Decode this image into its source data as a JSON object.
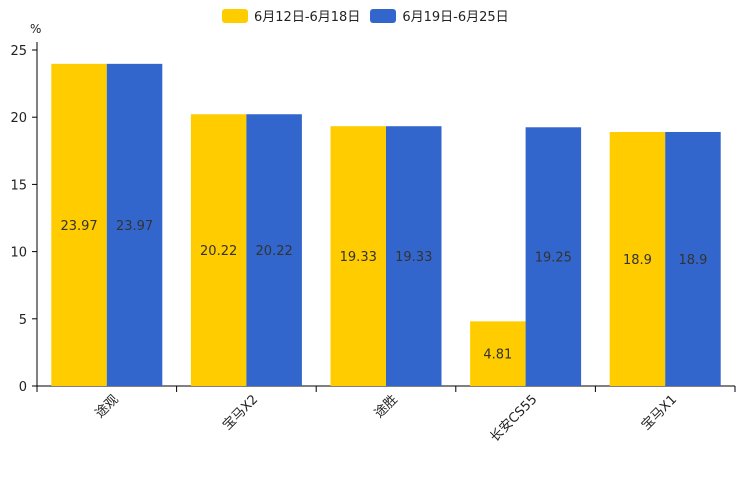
{
  "chart_data": {
    "type": "bar",
    "title": "",
    "unit_label": "%",
    "xlabel": "",
    "ylabel": "%",
    "ylim": [
      0,
      25
    ],
    "yticks": [
      0,
      5,
      10,
      15,
      20,
      25
    ],
    "categories": [
      "途观",
      "宝马X2",
      "途胜",
      "长安CS55",
      "宝马X1"
    ],
    "series": [
      {
        "name": "6月12日-6月18日",
        "color": "#FFCC00",
        "values": [
          23.97,
          20.22,
          19.33,
          4.81,
          18.9
        ]
      },
      {
        "name": "6月19日-6月25日",
        "color": "#3366CC",
        "values": [
          23.97,
          20.22,
          19.33,
          19.25,
          18.9
        ]
      }
    ],
    "legend_position": "top",
    "grid": false
  }
}
